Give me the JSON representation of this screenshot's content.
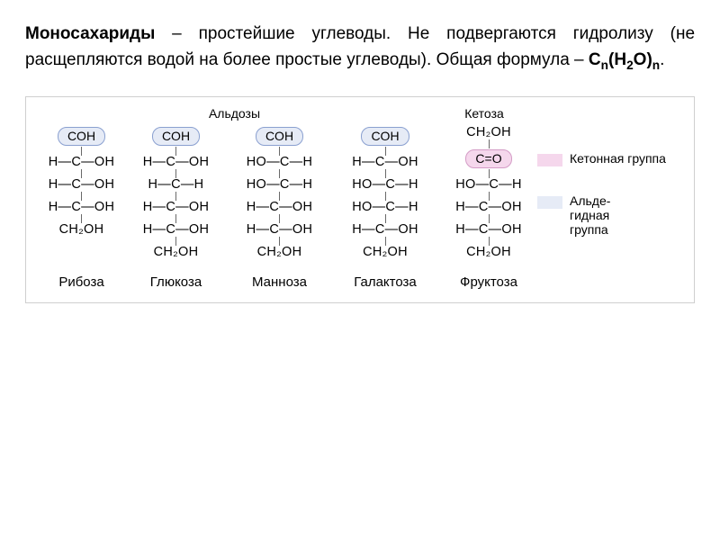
{
  "title": {
    "strong1": "Моносахариды",
    "dash": " – ",
    "line1": "простейшие углеводы. Не подвергаются гидролизу (не расщепляются водой на более простые углеводы). Общая формула – ",
    "formula_c": "C",
    "formula_n1": "n",
    "formula_mid": "(H",
    "formula_2": "2",
    "formula_o": "O)",
    "formula_n2": "n",
    "period": "."
  },
  "headers": {
    "aldoses": "Альдозы",
    "ketoses": "Кетоза"
  },
  "colors": {
    "aldehyde_fill": "#e6ebf6",
    "aldehyde_border": "#8aa0d0",
    "ketone_fill": "#f5d7ec",
    "ketone_border": "#d49cc6",
    "bond": "#696969"
  },
  "legend": {
    "ketone": "Кетонная группа",
    "aldehyde_l1": "Альде-",
    "aldehyde_l2": "гидная",
    "aldehyde_l3": "группа"
  },
  "molecules": [
    {
      "name": "Рибоза",
      "top_group": "COH",
      "top_type": "aldehyde",
      "carbons": [
        "H—C—OH",
        "H—C—OH",
        "H—C—OH"
      ],
      "bottom": "CH₂OH"
    },
    {
      "name": "Глюкоза",
      "top_group": "COH",
      "top_type": "aldehyde",
      "carbons": [
        "H—C—OH",
        "H—C—H",
        "H—C—OH",
        "H—C—OH"
      ],
      "bottom": "CH₂OH"
    },
    {
      "name": "Манноза",
      "top_group": "COH",
      "top_type": "aldehyde",
      "carbons": [
        "HO—C—H",
        "HO—C—H",
        "H—C—OH",
        "H—C—OH"
      ],
      "bottom": "CH₂OH"
    },
    {
      "name": "Галактоза",
      "top_group": "COH",
      "top_type": "aldehyde",
      "carbons": [
        "H—C—OH",
        "HO—C—H",
        "HO—C—H",
        "H—C—OH"
      ],
      "bottom": "CH₂OH"
    },
    {
      "name": "Фруктоза",
      "top_plain": "CH₂OH",
      "ketone_group": "C=O",
      "carbons": [
        "HO—C—H",
        "H—C—OH",
        "H—C—OH"
      ],
      "bottom": "CH₂OH"
    }
  ]
}
